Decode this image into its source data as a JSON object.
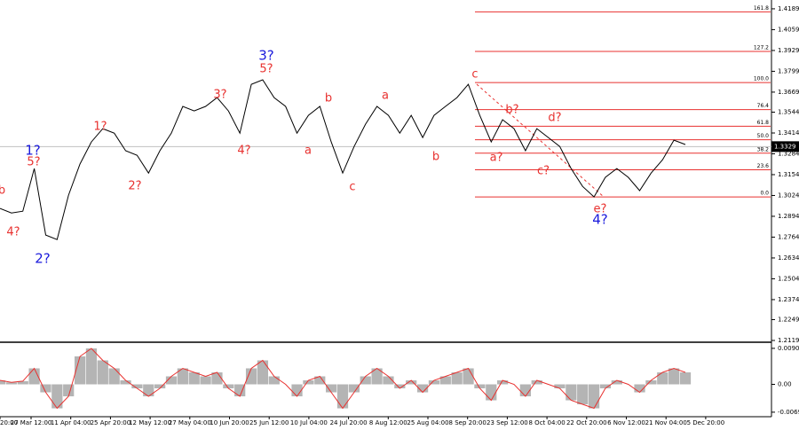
{
  "chart_data": [
    {
      "type": "line",
      "color": "#000000",
      "values": [
        1.2943,
        1.2915,
        1.2926,
        1.3192,
        1.2777,
        1.2749,
        1.3026,
        1.322,
        1.3358,
        1.3441,
        1.3413,
        1.3303,
        1.3275,
        1.3164,
        1.3303,
        1.3413,
        1.358,
        1.3552,
        1.358,
        1.3635,
        1.3552,
        1.3413,
        1.3718,
        1.3746,
        1.3635,
        1.358,
        1.3413,
        1.3524,
        1.358,
        1.3358,
        1.3164,
        1.333,
        1.3469,
        1.358,
        1.3524,
        1.3413,
        1.3524,
        1.3386,
        1.3524,
        1.358,
        1.3635,
        1.3718,
        1.3524,
        1.3358,
        1.3497,
        1.3441,
        1.3303,
        1.3441,
        1.3386,
        1.333,
        1.3192,
        1.3081,
        1.3015,
        1.3137,
        1.3192,
        1.3137,
        1.3054,
        1.3164,
        1.3247,
        1.3369,
        1.3342
      ],
      "ylim": [
        1.2108,
        1.4244
      ],
      "yticks": [
        1.4189,
        1.4059,
        1.3929,
        1.3799,
        1.3669,
        1.3544,
        1.3414,
        1.3284,
        1.3154,
        1.3024,
        1.2894,
        1.2764,
        1.2634,
        1.2504,
        1.2374,
        1.2249,
        1.2119
      ],
      "last_price": 1.3329,
      "fib_color": "#e8312f",
      "fib_levels": [
        {
          "value": 1.417,
          "label": "161.8"
        },
        {
          "value": 1.3923,
          "label": "127.2"
        },
        {
          "value": 1.3729,
          "label": "100.0"
        },
        {
          "value": 1.356,
          "label": "76.4"
        },
        {
          "value": 1.3456,
          "label": "61.8"
        },
        {
          "value": 1.3372,
          "label": "50.0"
        },
        {
          "value": 1.3288,
          "label": "38.2"
        },
        {
          "value": 1.3184,
          "label": "23.6"
        },
        {
          "value": 1.3015,
          "label": "0.0"
        }
      ],
      "annotations": [
        {
          "text": "b",
          "color": "#e8312f"
        },
        {
          "text": "4?",
          "color": "#e8312f"
        },
        {
          "text": "1?",
          "color": "#1a1adc"
        },
        {
          "text": "5?",
          "color": "#e8312f"
        },
        {
          "text": "2?",
          "color": "#1a1adc"
        },
        {
          "text": "1?",
          "color": "#e8312f"
        },
        {
          "text": "2?",
          "color": "#e8312f"
        },
        {
          "text": "3?",
          "color": "#e8312f"
        },
        {
          "text": "4?",
          "color": "#e8312f"
        },
        {
          "text": "3?",
          "color": "#1a1adc"
        },
        {
          "text": "5?",
          "color": "#e8312f"
        },
        {
          "text": "a",
          "color": "#e8312f"
        },
        {
          "text": "b",
          "color": "#e8312f"
        },
        {
          "text": "c",
          "color": "#e8312f"
        },
        {
          "text": "a",
          "color": "#e8312f"
        },
        {
          "text": "b",
          "color": "#e8312f"
        },
        {
          "text": "c",
          "color": "#e8312f"
        },
        {
          "text": "a?",
          "color": "#e8312f"
        },
        {
          "text": "b?",
          "color": "#e8312f"
        },
        {
          "text": "c?",
          "color": "#e8312f"
        },
        {
          "text": "d?",
          "color": "#e8312f"
        },
        {
          "text": "e?",
          "color": "#e8312f"
        },
        {
          "text": "4?",
          "color": "#1a1adc"
        }
      ],
      "xlabels": [
        "20:00",
        "27 Mar 12:00",
        "11 Apr 04:00",
        "25 Apr 20:00",
        "12 May 12:00",
        "27 May 04:00",
        "10 Jun 20:00",
        "25 Jun 12:00",
        "10 Jul 04:00",
        "24 Jul 20:00",
        "8 Aug 12:00",
        "25 Aug 04:00",
        "8 Sep 20:00",
        "23 Sep 12:00",
        "8 Oct 04:00",
        "22 Oct 20:00",
        "6 Nov 12:00",
        "21 Nov 04:00",
        "5 Dec 20:00"
      ]
    },
    {
      "type": "bar",
      "color": "#b4b4b4",
      "line_color": "#e8312f",
      "values": [
        0.001,
        0.0005,
        0.0008,
        0.004,
        -0.002,
        -0.006,
        -0.003,
        0.007,
        0.009,
        0.006,
        0.004,
        0.001,
        -0.001,
        -0.003,
        -0.001,
        0.002,
        0.004,
        0.003,
        0.002,
        0.003,
        -0.001,
        -0.003,
        0.004,
        0.006,
        0.002,
        0.0,
        -0.003,
        0.001,
        0.002,
        -0.002,
        -0.006,
        -0.002,
        0.002,
        0.004,
        0.002,
        -0.001,
        0.001,
        -0.002,
        0.001,
        0.002,
        0.003,
        0.004,
        -0.001,
        -0.004,
        0.001,
        0.0,
        -0.003,
        0.001,
        0.0,
        -0.001,
        -0.004,
        -0.005,
        -0.006,
        -0.001,
        0.001,
        0.0,
        -0.002,
        0.001,
        0.003,
        0.004,
        0.003
      ],
      "ylim": [
        -0.0081,
        0.0101
      ],
      "yticks": [
        0.00901,
        {
          "value": 0,
          "label": "0.00"
        },
        -0.00697
      ]
    }
  ]
}
